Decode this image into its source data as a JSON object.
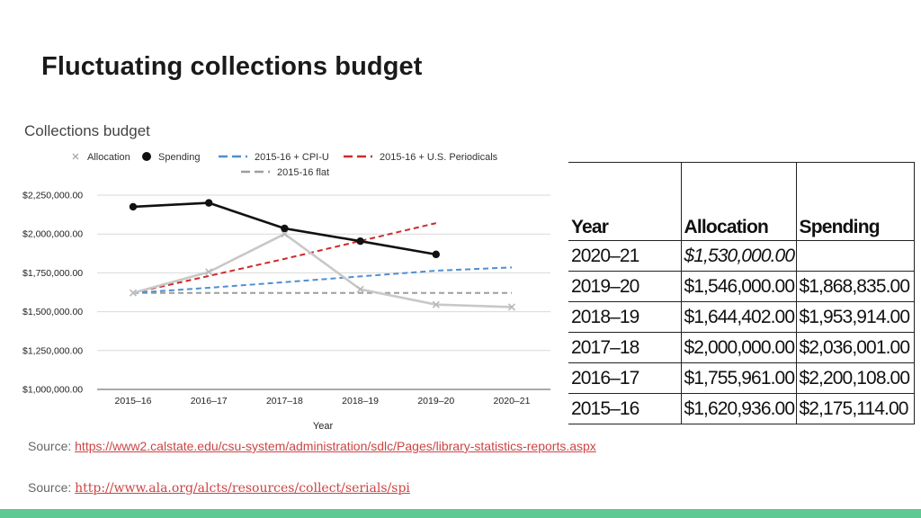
{
  "slide": {
    "title": "Fluctuating collections budget",
    "accent_bar_color": "#5ec993"
  },
  "chart_data": {
    "type": "line",
    "title": "Collections budget",
    "xlabel": "Year",
    "ylabel": "",
    "categories": [
      "2015–16",
      "2016–17",
      "2017–18",
      "2018–19",
      "2019–20",
      "2020–21"
    ],
    "ylim": [
      1000000,
      2250000
    ],
    "yticks": [
      1000000,
      1250000,
      1500000,
      1750000,
      2000000,
      2250000
    ],
    "ytick_labels": [
      "$1,000,000.00",
      "$1,250,000.00",
      "$1,500,000.00",
      "$1,750,000.00",
      "$2,000,000.00",
      "$2,250,000.00"
    ],
    "grid": true,
    "legend_position": "top",
    "series": [
      {
        "name": "Allocation",
        "color": "#c8c8c8",
        "style": "solid-x",
        "values": [
          1620936,
          1755961,
          2000000,
          1644402,
          1546000,
          1530000
        ]
      },
      {
        "name": "Spending",
        "color": "#111111",
        "style": "solid-dot",
        "values": [
          2175114,
          2200108,
          2036001,
          1953914,
          1868835,
          null
        ]
      },
      {
        "name": "2015-16 + CPI-U",
        "color": "#4f8fd1",
        "style": "dashed",
        "values": [
          1620936,
          1654000,
          1690000,
          1727000,
          1764000,
          1785000
        ]
      },
      {
        "name": "2015-16 + U.S. Periodicals",
        "color": "#cc2b2b",
        "style": "dashed",
        "values": [
          1620936,
          1730000,
          1840000,
          1955000,
          2070000,
          null
        ]
      },
      {
        "name": "2015-16 flat",
        "color": "#9e9e9e",
        "style": "dashed",
        "values": [
          1620936,
          1620936,
          1620936,
          1620936,
          1620936,
          1620936
        ]
      }
    ]
  },
  "table": {
    "headers": [
      "Year",
      "Allocation",
      "Spending"
    ],
    "rows": [
      {
        "year": "2020–21",
        "allocation": "$1,530,000.00",
        "spending": ""
      },
      {
        "year": "2019–20",
        "allocation": "$1,546,000.00",
        "spending": "$1,868,835.00"
      },
      {
        "year": "2018–19",
        "allocation": "$1,644,402.00",
        "spending": "$1,953,914.00"
      },
      {
        "year": "2017–18",
        "allocation": "$2,000,000.00",
        "spending": "$2,036,001.00"
      },
      {
        "year": "2016–17",
        "allocation": "$1,755,961.00",
        "spending": "$2,200,108.00"
      },
      {
        "year": "2015–16",
        "allocation": "$1,620,936.00",
        "spending": "$2,175,114.00"
      }
    ]
  },
  "sources": [
    {
      "label": "Source: ",
      "link": "https://www2.calstate.edu/csu-system/administration/sdlc/Pages/library-statistics-reports.aspx",
      "link_color": "#cc4444"
    },
    {
      "label": "Source: ",
      "link": "http://www.ala.org/alcts/resources/collect/serials/spi",
      "link_color": "#cc4444"
    }
  ]
}
